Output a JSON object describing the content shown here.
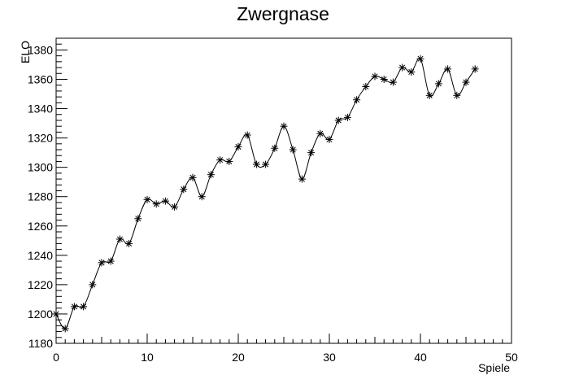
{
  "chart_data": {
    "type": "line",
    "title": "Zwergnase",
    "xlabel": "Spiele",
    "ylabel": "ELO",
    "xlim": [
      0,
      50
    ],
    "ylim": [
      1180,
      1388
    ],
    "x_ticks": [
      0,
      10,
      20,
      30,
      40,
      50
    ],
    "y_ticks": [
      1180,
      1200,
      1220,
      1240,
      1260,
      1280,
      1300,
      1320,
      1340,
      1360,
      1380
    ],
    "grid": false,
    "legend": "none",
    "marker": "asterisk",
    "line_color": "#000000",
    "series": [
      {
        "x": [
          0,
          1,
          2,
          3,
          4,
          5,
          6,
          7,
          8,
          9,
          10,
          11,
          12,
          13,
          14,
          15,
          16,
          17,
          18,
          19,
          20,
          21,
          22,
          23,
          24,
          25,
          26,
          27,
          28,
          29,
          30,
          31,
          32,
          33,
          34,
          35,
          36,
          37,
          38,
          39,
          40,
          41,
          42,
          43,
          44,
          45,
          46
        ],
        "values": [
          1200,
          1190,
          1205,
          1205,
          1220,
          1235,
          1236,
          1251,
          1248,
          1265,
          1278,
          1275,
          1277,
          1273,
          1285,
          1293,
          1280,
          1295,
          1305,
          1304,
          1314,
          1322,
          1302,
          1302,
          1313,
          1328,
          1312,
          1292,
          1310,
          1323,
          1319,
          1332,
          1334,
          1346,
          1355,
          1362,
          1360,
          1358,
          1368,
          1365,
          1374,
          1349,
          1357,
          1367,
          1349,
          1358,
          1367
        ]
      }
    ]
  }
}
